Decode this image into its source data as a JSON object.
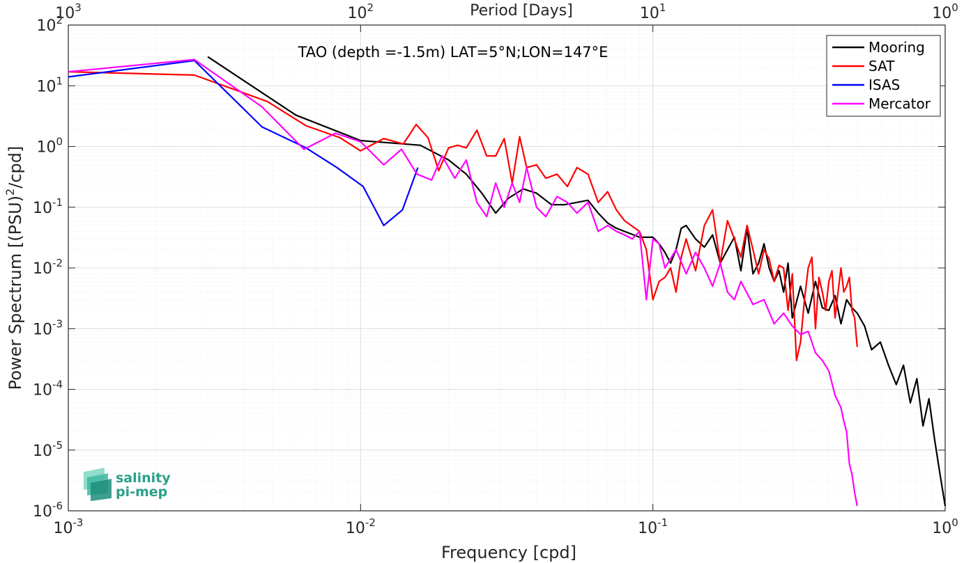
{
  "chart_data": {
    "type": "line",
    "title": "TAO (depth =-1.5m) LAT=5°N;LON=147°E",
    "xlabel": "Frequency [cpd]",
    "ylabel": "Power Spectrum [(PSU)²/cpd]",
    "ylabel_parts": {
      "before": "Power Spectrum [(PSU)",
      "sup": "2",
      "after": "/cpd]"
    },
    "top_xlabel": "Period [Days]",
    "x_scale": "log",
    "y_scale": "log",
    "xlim": [
      0.001,
      1
    ],
    "ylim": [
      1e-06,
      100
    ],
    "x_ticks": [
      {
        "base": "10",
        "exp": "-3",
        "value": 0.001
      },
      {
        "base": "10",
        "exp": "-2",
        "value": 0.01
      },
      {
        "base": "10",
        "exp": "-1",
        "value": 0.1
      },
      {
        "base": "10",
        "exp": "0",
        "value": 1
      }
    ],
    "y_ticks": [
      {
        "base": "10",
        "exp": "-6",
        "value": 1e-06
      },
      {
        "base": "10",
        "exp": "-5",
        "value": 1e-05
      },
      {
        "base": "10",
        "exp": "-4",
        "value": 0.0001
      },
      {
        "base": "10",
        "exp": "-3",
        "value": 0.001
      },
      {
        "base": "10",
        "exp": "-2",
        "value": 0.01
      },
      {
        "base": "10",
        "exp": "-1",
        "value": 0.1
      },
      {
        "base": "10",
        "exp": "0",
        "value": 1
      },
      {
        "base": "10",
        "exp": "1",
        "value": 10
      },
      {
        "base": "10",
        "exp": "2",
        "value": 100
      }
    ],
    "top_ticks": [
      {
        "base": "10",
        "exp": "3",
        "period_days": 1000
      },
      {
        "base": "10",
        "exp": "2",
        "period_days": 100
      },
      {
        "base": "10",
        "exp": "1",
        "period_days": 10
      },
      {
        "base": "10",
        "exp": "0",
        "period_days": 1
      }
    ],
    "grid": true,
    "minor_grid": true,
    "legend_position": "top-right",
    "series": [
      {
        "name": "Mooring",
        "color": "#000000",
        "x": [
          0.003,
          0.006,
          0.01,
          0.0125,
          0.016,
          0.02,
          0.023,
          0.026,
          0.029,
          0.032,
          0.036,
          0.04,
          0.045,
          0.05,
          0.055,
          0.06,
          0.065,
          0.07,
          0.075,
          0.08,
          0.09,
          0.1,
          0.105,
          0.11,
          0.115,
          0.12,
          0.125,
          0.13,
          0.14,
          0.15,
          0.16,
          0.17,
          0.18,
          0.19,
          0.2,
          0.21,
          0.22,
          0.23,
          0.24,
          0.25,
          0.26,
          0.27,
          0.28,
          0.29,
          0.3,
          0.32,
          0.34,
          0.36,
          0.38,
          0.4,
          0.42,
          0.44,
          0.46,
          0.48,
          0.5,
          0.53,
          0.56,
          0.6,
          0.64,
          0.68,
          0.72,
          0.76,
          0.8,
          0.84,
          0.88,
          0.92,
          0.96,
          1.0
        ],
        "values": [
          30,
          3.3,
          1.25,
          1.15,
          1.05,
          0.6,
          0.35,
          0.17,
          0.08,
          0.14,
          0.2,
          0.17,
          0.11,
          0.11,
          0.12,
          0.13,
          0.08,
          0.055,
          0.045,
          0.04,
          0.032,
          0.032,
          0.025,
          0.018,
          0.012,
          0.02,
          0.045,
          0.05,
          0.03,
          0.022,
          0.035,
          0.012,
          0.02,
          0.032,
          0.009,
          0.045,
          0.008,
          0.012,
          0.025,
          0.01,
          0.006,
          0.009,
          0.004,
          0.012,
          0.0015,
          0.005,
          0.0018,
          0.006,
          0.0022,
          0.002,
          0.0035,
          0.0012,
          0.003,
          0.0022,
          0.0018,
          0.0011,
          0.00045,
          0.0006,
          0.00025,
          0.00012,
          0.00025,
          6e-05,
          0.00015,
          2.5e-05,
          7e-05,
          1.5e-05,
          4e-06,
          1.2e-06
        ]
      },
      {
        "name": "SAT",
        "color": "#ff0000",
        "x": [
          0.001,
          0.0027,
          0.0048,
          0.0065,
          0.0085,
          0.01,
          0.012,
          0.014,
          0.0155,
          0.017,
          0.0185,
          0.02,
          0.0215,
          0.023,
          0.025,
          0.027,
          0.029,
          0.031,
          0.033,
          0.035,
          0.037,
          0.04,
          0.043,
          0.047,
          0.051,
          0.055,
          0.06,
          0.065,
          0.07,
          0.075,
          0.08,
          0.09,
          0.095,
          0.1,
          0.105,
          0.11,
          0.115,
          0.12,
          0.125,
          0.13,
          0.14,
          0.15,
          0.16,
          0.17,
          0.18,
          0.19,
          0.2,
          0.21,
          0.22,
          0.23,
          0.24,
          0.25,
          0.26,
          0.27,
          0.28,
          0.29,
          0.3,
          0.31,
          0.32,
          0.33,
          0.34,
          0.35,
          0.36,
          0.37,
          0.38,
          0.39,
          0.4,
          0.41,
          0.42,
          0.43,
          0.44,
          0.45,
          0.46,
          0.47,
          0.48,
          0.49,
          0.5
        ],
        "values": [
          17,
          15,
          5.5,
          2.2,
          1.4,
          0.85,
          1.35,
          1.1,
          2.3,
          1.4,
          0.4,
          0.95,
          1.05,
          0.95,
          1.85,
          0.7,
          0.7,
          1.35,
          0.25,
          1.45,
          0.45,
          0.5,
          0.3,
          0.35,
          0.22,
          0.45,
          0.35,
          0.12,
          0.18,
          0.09,
          0.06,
          0.04,
          0.02,
          0.003,
          0.006,
          0.007,
          0.01,
          0.004,
          0.015,
          0.03,
          0.009,
          0.05,
          0.09,
          0.012,
          0.06,
          0.03,
          0.015,
          0.05,
          0.02,
          0.008,
          0.02,
          0.014,
          0.006,
          0.011,
          0.01,
          0.002,
          0.008,
          0.0003,
          0.0006,
          0.003,
          0.01,
          0.015,
          0.001,
          0.007,
          0.004,
          0.002,
          0.006,
          0.009,
          0.0015,
          0.004,
          0.01,
          0.004,
          0.005,
          0.007,
          0.002,
          0.0015,
          0.0005
        ]
      },
      {
        "name": "ISAS",
        "color": "#0000ff",
        "x": [
          0.001,
          0.0027,
          0.0046,
          0.0065,
          0.0083,
          0.0102,
          0.012,
          0.0139,
          0.0157
        ],
        "values": [
          14,
          26,
          2.1,
          0.95,
          0.45,
          0.22,
          0.05,
          0.09,
          0.45
        ]
      },
      {
        "name": "Mercator",
        "color": "#ff00ff",
        "x": [
          0.001,
          0.0027,
          0.0046,
          0.0064,
          0.0082,
          0.01,
          0.012,
          0.0138,
          0.0156,
          0.0175,
          0.019,
          0.021,
          0.023,
          0.025,
          0.027,
          0.029,
          0.031,
          0.033,
          0.035,
          0.037,
          0.04,
          0.043,
          0.047,
          0.051,
          0.055,
          0.06,
          0.065,
          0.07,
          0.075,
          0.08,
          0.085,
          0.09,
          0.095,
          0.1,
          0.105,
          0.11,
          0.12,
          0.13,
          0.14,
          0.15,
          0.16,
          0.17,
          0.18,
          0.19,
          0.2,
          0.22,
          0.24,
          0.26,
          0.28,
          0.3,
          0.32,
          0.34,
          0.36,
          0.38,
          0.4,
          0.42,
          0.44,
          0.45,
          0.46,
          0.47,
          0.48,
          0.49,
          0.5
        ],
        "values": [
          17,
          27,
          4.5,
          0.9,
          1.65,
          1.2,
          0.5,
          0.9,
          0.35,
          0.28,
          0.7,
          0.3,
          0.6,
          0.12,
          0.07,
          0.25,
          0.1,
          0.25,
          0.12,
          0.45,
          0.1,
          0.07,
          0.15,
          0.12,
          0.08,
          0.12,
          0.04,
          0.05,
          0.04,
          0.035,
          0.03,
          0.04,
          0.003,
          0.03,
          0.025,
          0.01,
          0.02,
          0.008,
          0.018,
          0.01,
          0.005,
          0.012,
          0.004,
          0.003,
          0.006,
          0.0025,
          0.003,
          0.0012,
          0.0018,
          0.0011,
          0.0008,
          0.0009,
          0.0004,
          0.0003,
          0.0002,
          8e-05,
          5e-05,
          3e-05,
          2e-05,
          6e-06,
          4e-06,
          2e-06,
          1.2e-06
        ]
      }
    ]
  },
  "logo": {
    "line1": "salinity",
    "line2": "pi-mep",
    "color": "#2aa089"
  }
}
